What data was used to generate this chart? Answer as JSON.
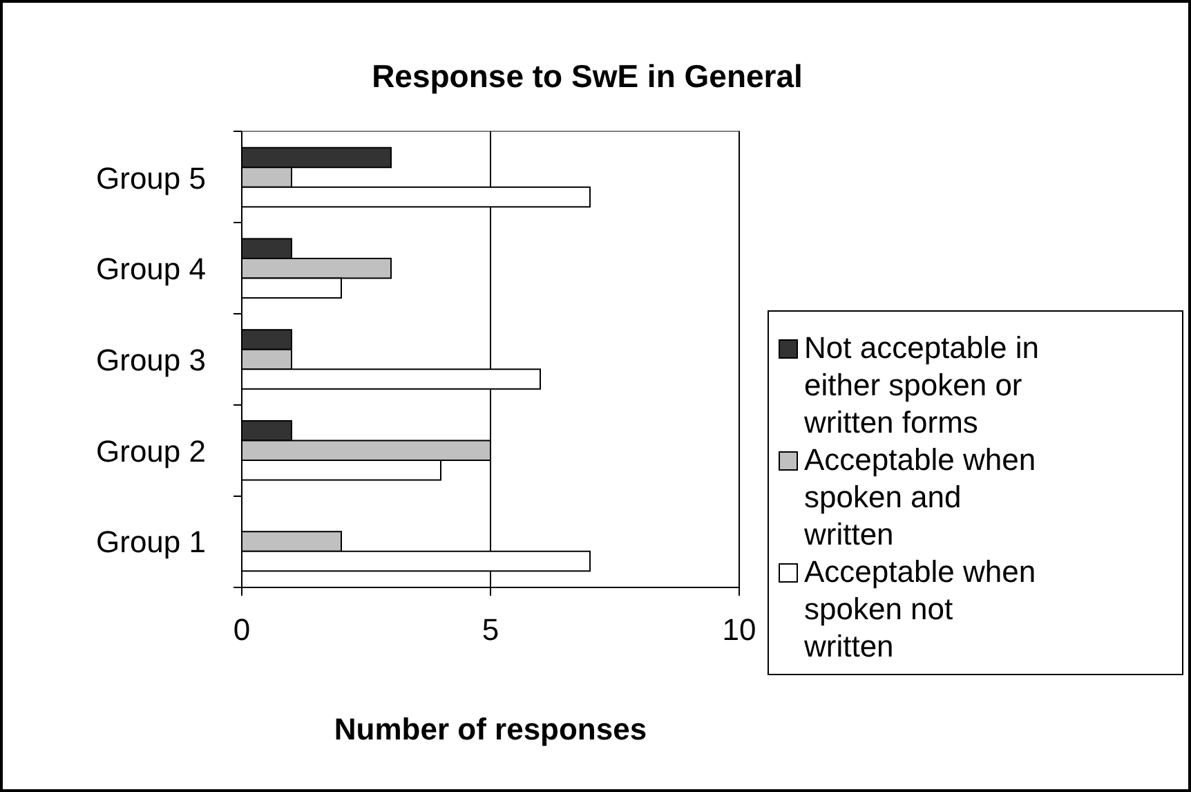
{
  "chart_data": {
    "type": "bar",
    "orientation": "horizontal",
    "title": "Response to SwE in General",
    "xlabel": "Number of responses",
    "categories": [
      "Group 5",
      "Group 4",
      "Group 3",
      "Group 2",
      "Group 1"
    ],
    "series": [
      {
        "name": "Not acceptable in either spoken or written forms",
        "color": "#333333",
        "values": [
          3,
          1,
          1,
          1,
          0
        ]
      },
      {
        "name": "Acceptable when spoken and written",
        "color": "#c0c0c0",
        "values": [
          1,
          3,
          1,
          5,
          2
        ]
      },
      {
        "name": "Acceptable when spoken not written",
        "color": "#ffffff",
        "values": [
          7,
          2,
          6,
          4,
          7
        ]
      }
    ],
    "xlim": [
      0,
      10
    ],
    "xticks": [
      0,
      5,
      10
    ],
    "grid": "x",
    "legend": "right"
  }
}
